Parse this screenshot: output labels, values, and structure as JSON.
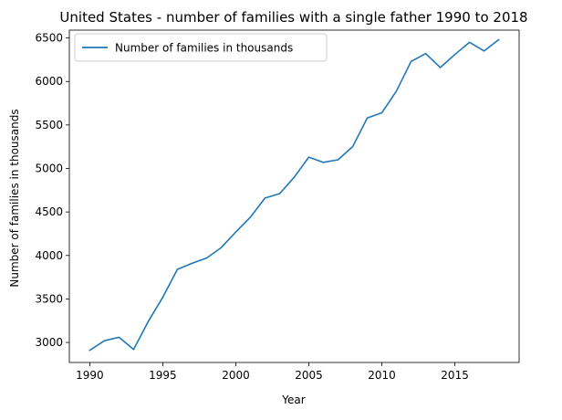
{
  "chart_data": {
    "type": "line",
    "title": "United States - number of families with a single father 1990 to 2018",
    "xlabel": "Year",
    "ylabel": "Number of families in thousands",
    "xlim": [
      1988.6,
      2019.4
    ],
    "ylim": [
      2770,
      6590
    ],
    "x_ticks": [
      1990,
      1995,
      2000,
      2005,
      2010,
      2015
    ],
    "y_ticks": [
      3000,
      3500,
      4000,
      4500,
      5000,
      5500,
      6000,
      6500
    ],
    "grid": false,
    "legend_position": "top-left",
    "series": [
      {
        "name": "Number of families in thousands",
        "color": "#1f77b4",
        "x": [
          1990,
          1991,
          1992,
          1993,
          1994,
          1995,
          1996,
          1997,
          1998,
          1999,
          2000,
          2001,
          2002,
          2003,
          2004,
          2005,
          2006,
          2007,
          2008,
          2009,
          2010,
          2011,
          2012,
          2013,
          2014,
          2015,
          2016,
          2017,
          2018
        ],
        "y": [
          2910,
          3020,
          3060,
          2920,
          3240,
          3520,
          3840,
          3910,
          3970,
          4090,
          4270,
          4440,
          4660,
          4710,
          4900,
          5130,
          5070,
          5100,
          5250,
          5580,
          5640,
          5890,
          6230,
          6320,
          6160,
          6310,
          6450,
          6350,
          6480
        ]
      }
    ]
  }
}
